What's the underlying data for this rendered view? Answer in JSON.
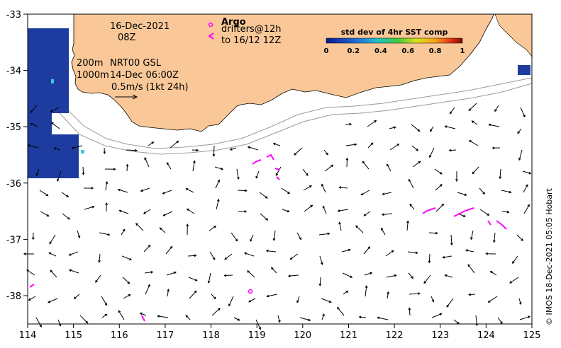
{
  "map": {
    "date": "16-Dec-2021",
    "time": "08Z",
    "depth_lines": [
      "200m",
      "1000m"
    ],
    "altimetry": "NRT00 GSL",
    "altimetry_date": "14-Dec 06:00Z",
    "scale_label": "0.5m/s (1kt 24h)",
    "argo_label": "Argo",
    "drifters_label": [
      "drifters@12h",
      "to 16/12 12Z"
    ],
    "copyright": "© IMOS 18-Dec-2021 05:05 Hobart",
    "colorbar": {
      "title": "std dev of 4hr SST comp",
      "ticks": [
        "0",
        "0.2",
        "0.4",
        "0.6",
        "0.8",
        "1"
      ]
    },
    "x_ticks": [
      "114",
      "115",
      "116",
      "117",
      "118",
      "119",
      "120",
      "121",
      "122",
      "123",
      "124",
      "125"
    ],
    "y_ticks": [
      "-33",
      "-34",
      "-35",
      "-36",
      "-37",
      "-38"
    ],
    "colors": {
      "land": "#FAC898",
      "drifters": "#FF00FF",
      "sst": "#1E3CA0",
      "isobath": "#9A9A9A"
    }
  }
}
